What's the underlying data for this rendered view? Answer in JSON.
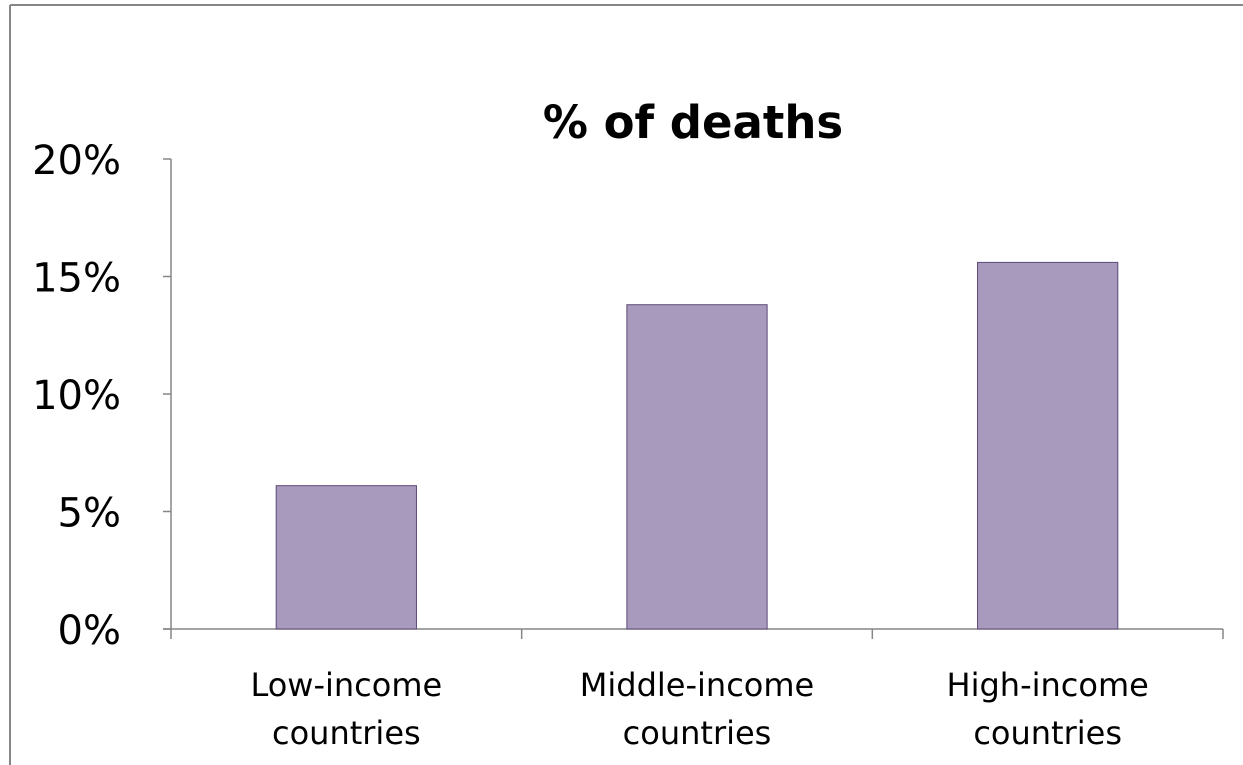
{
  "chart_data": {
    "type": "bar",
    "title": "% of deaths",
    "xlabel": "",
    "ylabel": "",
    "categories": [
      [
        "Low-income",
        "countries"
      ],
      [
        "Middle-income",
        "countries"
      ],
      [
        "High-income",
        "countries"
      ]
    ],
    "values": [
      0.061,
      0.138,
      0.156
    ],
    "ylim": [
      0,
      0.2
    ],
    "yticks": [
      0,
      0.05,
      0.1,
      0.15,
      0.2
    ],
    "ytick_labels": [
      "0%",
      "5%",
      "10%",
      "15%",
      "20%"
    ],
    "grid": false,
    "legend": "none"
  },
  "colors": {
    "bar_fill": "#a89abd",
    "bar_stroke": "#5d4a7a",
    "axis": "#868686",
    "frame": "#868686",
    "text": "#000000",
    "background": "#ffffff"
  }
}
